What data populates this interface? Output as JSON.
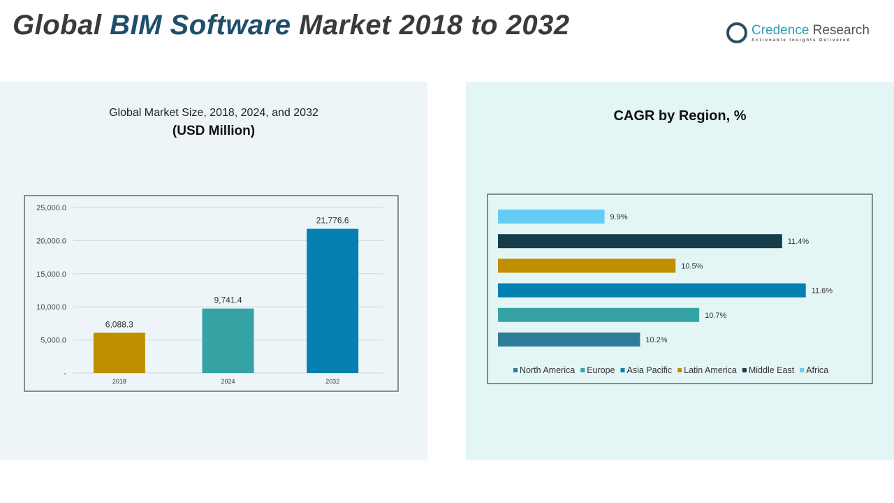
{
  "header": {
    "title_prefix": "Global ",
    "title_highlight": "BIM Software",
    "title_suffix": " Market 2018 to 2032"
  },
  "logo": {
    "name_part1": "Credence",
    "name_part2": " Research",
    "tagline": "Actionable Insights Delivered"
  },
  "colors": {
    "gold": "#bf8f00",
    "teal": "#35a3a3",
    "blue": "#0580b0",
    "steel": "#2e7b9a",
    "navy": "#173d4b",
    "sky": "#63cdf5"
  },
  "chart_data": [
    {
      "type": "bar",
      "title": "Global Market Size, 2018, 2024, and 2032",
      "subtitle": "(USD Million)",
      "categories": [
        "2018",
        "2024",
        "2032"
      ],
      "values": [
        6088.3,
        9741.4,
        21776.6
      ],
      "value_labels": [
        "6,088.3",
        "9,741.4",
        "21,776.6"
      ],
      "bar_colors": [
        "#bf8f00",
        "#35a3a3",
        "#0580b0"
      ],
      "yticks": [
        "-",
        "5,000.0",
        "10,000.0",
        "15,000.0",
        "20,000.0",
        "25,000.0"
      ],
      "ylim": [
        0,
        25000
      ],
      "grid": true
    },
    {
      "type": "bar",
      "orientation": "horizontal",
      "title": "CAGR by Region, %",
      "series": [
        {
          "name": "North America",
          "value": 10.2,
          "label": "10.2%",
          "color": "#2e7b9a"
        },
        {
          "name": "Europe",
          "value": 10.7,
          "label": "10.7%",
          "color": "#35a3a3"
        },
        {
          "name": "Asia Pacific",
          "value": 11.6,
          "label": "11.6%",
          "color": "#0580b0"
        },
        {
          "name": "Latin America",
          "value": 10.5,
          "label": "10.5%",
          "color": "#bf8f00"
        },
        {
          "name": "Middle East",
          "value": 11.4,
          "label": "11.4%",
          "color": "#173d4b"
        },
        {
          "name": "Africa",
          "value": 9.9,
          "label": "9.9%",
          "color": "#63cdf5"
        }
      ],
      "xlim": [
        9.0,
        12.1
      ],
      "legend": "bottom",
      "grid": false
    }
  ]
}
